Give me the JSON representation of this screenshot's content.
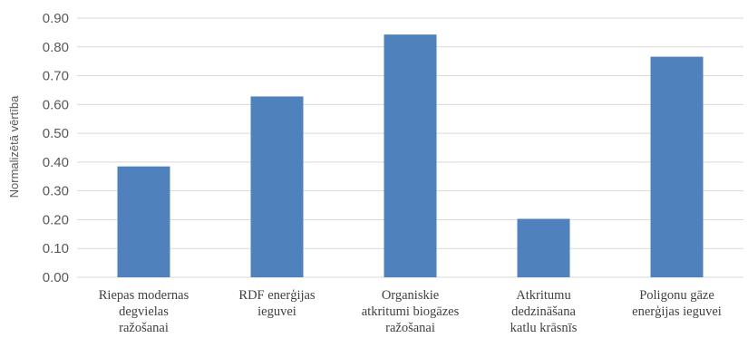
{
  "chart_data": {
    "type": "bar",
    "title": "",
    "xlabel": "",
    "ylabel": "Normalizētā vērtība",
    "ylim": [
      0,
      0.9
    ],
    "yticks": [
      "0.00",
      "0.10",
      "0.20",
      "0.30",
      "0.40",
      "0.50",
      "0.60",
      "0.70",
      "0.80",
      "0.90"
    ],
    "grid": true,
    "categories": [
      [
        "Riepas modernas",
        "degvielas",
        "ražošanai"
      ],
      [
        "RDF enerģijas",
        "ieguvei"
      ],
      [
        "Organiskie",
        "atkritumi biogāzes",
        "ražošanai"
      ],
      [
        "Atkritumu",
        "dedzināšana",
        "katlu krāsnīs"
      ],
      [
        "Poligonu gāze",
        "enerģijas ieguvei"
      ]
    ],
    "values": [
      0.385,
      0.628,
      0.843,
      0.203,
      0.766
    ],
    "bar_color": "#4f81bd"
  }
}
